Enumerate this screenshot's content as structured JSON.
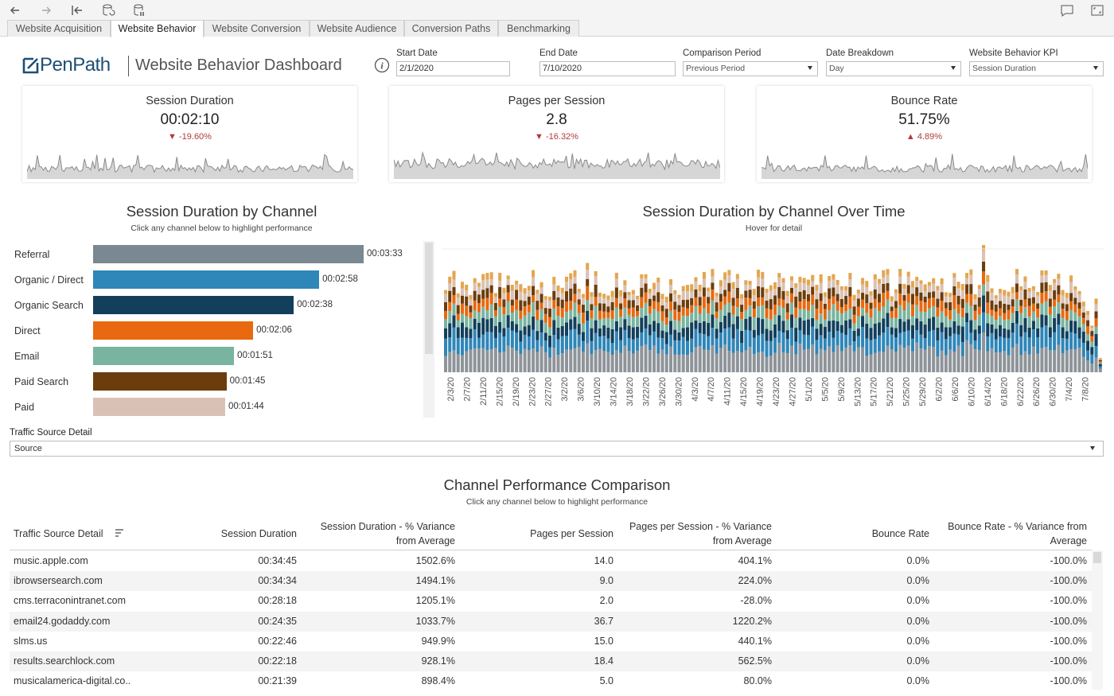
{
  "toolbar": {
    "icons": [
      "back-icon",
      "forward-icon",
      "first-page-icon",
      "refresh-data-icon",
      "pause-updates-icon",
      "comment-icon",
      "fullscreen-icon"
    ]
  },
  "tabs": [
    {
      "label": "Website Acquisition",
      "active": false
    },
    {
      "label": "Website Behavior",
      "active": true
    },
    {
      "label": "Website Conversion",
      "active": false
    },
    {
      "label": "Website Audience",
      "active": false
    },
    {
      "label": "Conversion Paths",
      "active": false
    },
    {
      "label": "Benchmarking",
      "active": false
    }
  ],
  "header": {
    "logo_text": "PenPath",
    "title": "Website Behavior Dashboard"
  },
  "filters": {
    "start_date": {
      "label": "Start Date",
      "value": "2/1/2020"
    },
    "end_date": {
      "label": "End Date",
      "value": "7/10/2020"
    },
    "comparison_period": {
      "label": "Comparison Period",
      "value": "Previous Period"
    },
    "date_breakdown": {
      "label": "Date Breakdown",
      "value": "Day"
    },
    "kpi": {
      "label": "Website Behavior KPI",
      "value": "Session Duration"
    }
  },
  "kpis": [
    {
      "title": "Session Duration",
      "value": "00:02:10",
      "delta": "-19.60%",
      "direction": "down"
    },
    {
      "title": "Pages per Session",
      "value": "2.8",
      "delta": "-16.32%",
      "direction": "down"
    },
    {
      "title": "Bounce Rate",
      "value": "51.75%",
      "delta": "4.89%",
      "direction": "up"
    }
  ],
  "colors": {
    "brand": "#1d4f75",
    "negative": "#b23b3b",
    "referral": "#7a8891",
    "organic_direct": "#2f86b8",
    "organic_search": "#123f5c",
    "direct": "#e8690f",
    "email": "#79b4a0",
    "paid_search": "#6b3d0d",
    "paid": "#d9c2b5",
    "other": "#e3a64f"
  },
  "channel_chart": {
    "title": "Session Duration by Channel",
    "subtitle": "Click any channel below to highlight performance"
  },
  "chart_data": [
    {
      "type": "bar",
      "orientation": "horizontal",
      "title": "Session Duration by Channel",
      "categories": [
        "Referral",
        "Organic / Direct",
        "Organic Search",
        "Direct",
        "Email",
        "Paid Search",
        "Paid"
      ],
      "values": [
        213,
        178,
        158,
        126,
        111,
        105,
        104
      ],
      "value_labels": [
        "00:03:33",
        "00:02:58",
        "00:02:38",
        "00:02:06",
        "00:01:51",
        "00:01:45",
        "00:01:44"
      ],
      "unit": "seconds"
    },
    {
      "type": "bar",
      "stacked": true,
      "title": "Session Duration by Channel Over Time",
      "subtitle": "Hover for detail",
      "x_tick_labels": [
        "2/3/20",
        "2/7/20",
        "2/11/20",
        "2/15/20",
        "2/19/20",
        "2/23/20",
        "2/27/20",
        "3/2/20",
        "3/6/20",
        "3/10/20",
        "3/14/20",
        "3/18/20",
        "3/22/20",
        "3/26/20",
        "3/30/20",
        "4/3/20",
        "4/7/20",
        "4/11/20",
        "4/15/20",
        "4/19/20",
        "4/23/20",
        "4/27/20",
        "5/1/20",
        "5/5/20",
        "5/9/20",
        "5/13/20",
        "5/17/20",
        "5/21/20",
        "5/25/20",
        "5/29/20",
        "6/2/20",
        "6/6/20",
        "6/10/20",
        "6/14/20",
        "6/18/20",
        "6/22/20",
        "6/26/20",
        "6/30/20",
        "7/4/20",
        "7/8/20"
      ],
      "series": [
        "Referral",
        "Organic / Direct",
        "Organic Search",
        "Direct",
        "Email",
        "Paid Search",
        "Paid",
        "Other"
      ]
    }
  ],
  "time_chart": {
    "title": "Session Duration by Channel Over Time",
    "subtitle": "Hover for detail"
  },
  "traffic_source": {
    "label": "Traffic Source Detail",
    "value": "Source"
  },
  "table": {
    "title": "Channel Performance Comparison",
    "subtitle": "Click any channel below to highlight performance",
    "headers": {
      "source": "Traffic Source Detail",
      "sd": "Session Duration",
      "sd_var_1": "Session Duration - % Variance",
      "sd_var_2": "from Average",
      "pps": "Pages per Session",
      "pps_var_1": "Pages per Session - % Variance",
      "pps_var_2": "from Average",
      "br": "Bounce Rate",
      "br_var_1": "Bounce Rate - % Variance from",
      "br_var_2": "Average"
    },
    "rows": [
      {
        "source": "music.apple.com",
        "sd": "00:34:45",
        "sd_var": "1502.6%",
        "pps": "14.0",
        "pps_var": "404.1%",
        "br": "0.0%",
        "br_var": "-100.0%"
      },
      {
        "source": "ibrowsersearch.com",
        "sd": "00:34:34",
        "sd_var": "1494.1%",
        "pps": "9.0",
        "pps_var": "224.0%",
        "br": "0.0%",
        "br_var": "-100.0%"
      },
      {
        "source": "cms.terraconintranet.com",
        "sd": "00:28:18",
        "sd_var": "1205.1%",
        "pps": "2.0",
        "pps_var": "-28.0%",
        "br": "0.0%",
        "br_var": "-100.0%"
      },
      {
        "source": "email24.godaddy.com",
        "sd": "00:24:35",
        "sd_var": "1033.7%",
        "pps": "36.7",
        "pps_var": "1220.2%",
        "br": "0.0%",
        "br_var": "-100.0%"
      },
      {
        "source": "slms.us",
        "sd": "00:22:46",
        "sd_var": "949.9%",
        "pps": "15.0",
        "pps_var": "440.1%",
        "br": "0.0%",
        "br_var": "-100.0%"
      },
      {
        "source": "results.searchlock.com",
        "sd": "00:22:18",
        "sd_var": "928.1%",
        "pps": "18.4",
        "pps_var": "562.5%",
        "br": "0.0%",
        "br_var": "-100.0%"
      },
      {
        "source": "musicalamerica-digital.co..",
        "sd": "00:21:39",
        "sd_var": "898.4%",
        "pps": "5.0",
        "pps_var": "80.0%",
        "br": "0.0%",
        "br_var": "-100.0%"
      }
    ]
  }
}
